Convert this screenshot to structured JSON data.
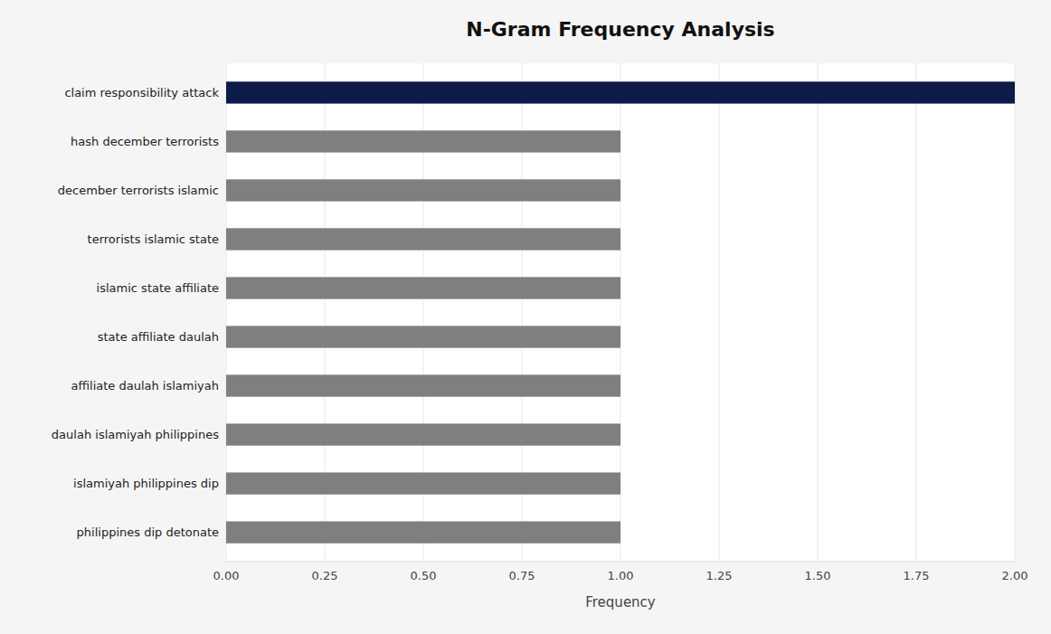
{
  "chart_data": {
    "type": "bar",
    "orientation": "horizontal",
    "title": "N-Gram Frequency Analysis",
    "xlabel": "Frequency",
    "categories": [
      "philippines dip detonate",
      "islamiyah philippines dip",
      "daulah islamiyah philippines",
      "affiliate daulah islamiyah",
      "state affiliate daulah",
      "islamic state affiliate",
      "terrorists islamic state",
      "december terrorists islamic",
      "hash december terrorists",
      "claim responsibility attack"
    ],
    "values": [
      1,
      1,
      1,
      1,
      1,
      1,
      1,
      1,
      1,
      2
    ],
    "colors": [
      "#7f7f7f",
      "#7f7f7f",
      "#7f7f7f",
      "#7f7f7f",
      "#7f7f7f",
      "#7f7f7f",
      "#7f7f7f",
      "#7f7f7f",
      "#7f7f7f",
      "#0d1b4b"
    ],
    "xlim": [
      0,
      2.0
    ],
    "xticks": [
      {
        "value": 0.0,
        "label": "0.00"
      },
      {
        "value": 0.25,
        "label": "0.25"
      },
      {
        "value": 0.5,
        "label": "0.50"
      },
      {
        "value": 0.75,
        "label": "0.75"
      },
      {
        "value": 1.0,
        "label": "1.00"
      },
      {
        "value": 1.25,
        "label": "1.25"
      },
      {
        "value": 1.5,
        "label": "1.50"
      },
      {
        "value": 1.75,
        "label": "1.75"
      },
      {
        "value": 2.0,
        "label": "2.00"
      }
    ],
    "grid": true
  }
}
